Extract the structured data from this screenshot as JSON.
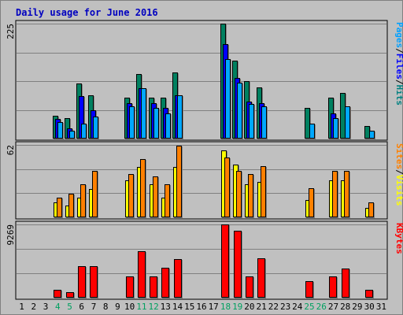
{
  "chart_data": {
    "type": "bar",
    "title": "Daily usage for June 2016",
    "days": [
      "1",
      "2",
      "3",
      "4",
      "5",
      "6",
      "7",
      "8",
      "9",
      "10",
      "11",
      "12",
      "13",
      "14",
      "15",
      "16",
      "17",
      "18",
      "19",
      "20",
      "21",
      "22",
      "23",
      "24",
      "25",
      "26",
      "27",
      "28",
      "29",
      "30",
      "31"
    ],
    "weekend_days": [
      "4",
      "5",
      "11",
      "12",
      "18",
      "19",
      "25",
      "26"
    ],
    "panels": [
      {
        "name": "pages-files-hits",
        "scale_max_label": "225",
        "ymax": 225,
        "series_labels": [
          "Pages",
          "/",
          "Files",
          "/",
          "Hits"
        ],
        "series_label_colors": [
          "#00a0ff",
          "#000000",
          "#0000ff",
          "#000000",
          "#008080"
        ],
        "series": [
          {
            "name": "Hits",
            "color": "#008060",
            "values": [
              0,
              0,
              0,
              45,
              40,
              108,
              85,
              0,
              0,
              80,
              126,
              80,
              80,
              130,
              0,
              0,
              0,
              225,
              153,
              113,
              100,
              0,
              0,
              0,
              60,
              0,
              80,
              90,
              0,
              25,
              0
            ]
          },
          {
            "name": "Files",
            "color": "#0000ff",
            "values": [
              0,
              0,
              0,
              38,
              20,
              83,
              55,
              0,
              0,
              70,
              98,
              70,
              60,
              85,
              0,
              0,
              0,
              185,
              118,
              73,
              70,
              0,
              0,
              0,
              0,
              0,
              50,
              0,
              0,
              0,
              0
            ]
          },
          {
            "name": "Pages",
            "color": "#00a8ff",
            "values": [
              0,
              0,
              0,
              33,
              15,
              30,
              43,
              0,
              0,
              63,
              98,
              60,
              50,
              85,
              0,
              0,
              0,
              155,
              110,
              68,
              63,
              0,
              0,
              0,
              30,
              0,
              40,
              63,
              0,
              15,
              0
            ]
          }
        ]
      },
      {
        "name": "sites-visits",
        "scale_max_label": "62",
        "ymax": 62,
        "series_labels": [
          "Sites",
          "/",
          "Visits"
        ],
        "series_label_colors": [
          "#ff8000",
          "#000000",
          "#ffff00"
        ],
        "series": [
          {
            "name": "Visits",
            "color": "#ffff00",
            "values": [
              0,
              0,
              0,
              13,
              10,
              17,
              24,
              0,
              0,
              32,
              43,
              28,
              17,
              43,
              0,
              0,
              0,
              57,
              45,
              28,
              30,
              0,
              0,
              0,
              15,
              0,
              32,
              32,
              0,
              8,
              0
            ]
          },
          {
            "name": "Sites",
            "color": "#ff8000",
            "values": [
              0,
              0,
              0,
              17,
              20,
              28,
              40,
              0,
              0,
              37,
              50,
              35,
              28,
              61,
              0,
              0,
              0,
              51,
              40,
              37,
              44,
              0,
              0,
              0,
              25,
              0,
              40,
              40,
              0,
              13,
              0
            ]
          }
        ]
      },
      {
        "name": "kbytes",
        "scale_max_label": "9269",
        "ymax": 9269,
        "series_labels": [
          "KBytes"
        ],
        "series_label_colors": [
          "#ff0000"
        ],
        "series": [
          {
            "name": "KBytes",
            "color": "#ff0000",
            "values": [
              0,
              0,
              0,
              1040,
              690,
              3960,
              3960,
              0,
              0,
              2660,
              5900,
              2660,
              3810,
              4880,
              0,
              0,
              0,
              9269,
              8450,
              2660,
              4950,
              0,
              0,
              0,
              2130,
              0,
              2660,
              3730,
              0,
              990,
              0
            ]
          }
        ]
      }
    ]
  }
}
